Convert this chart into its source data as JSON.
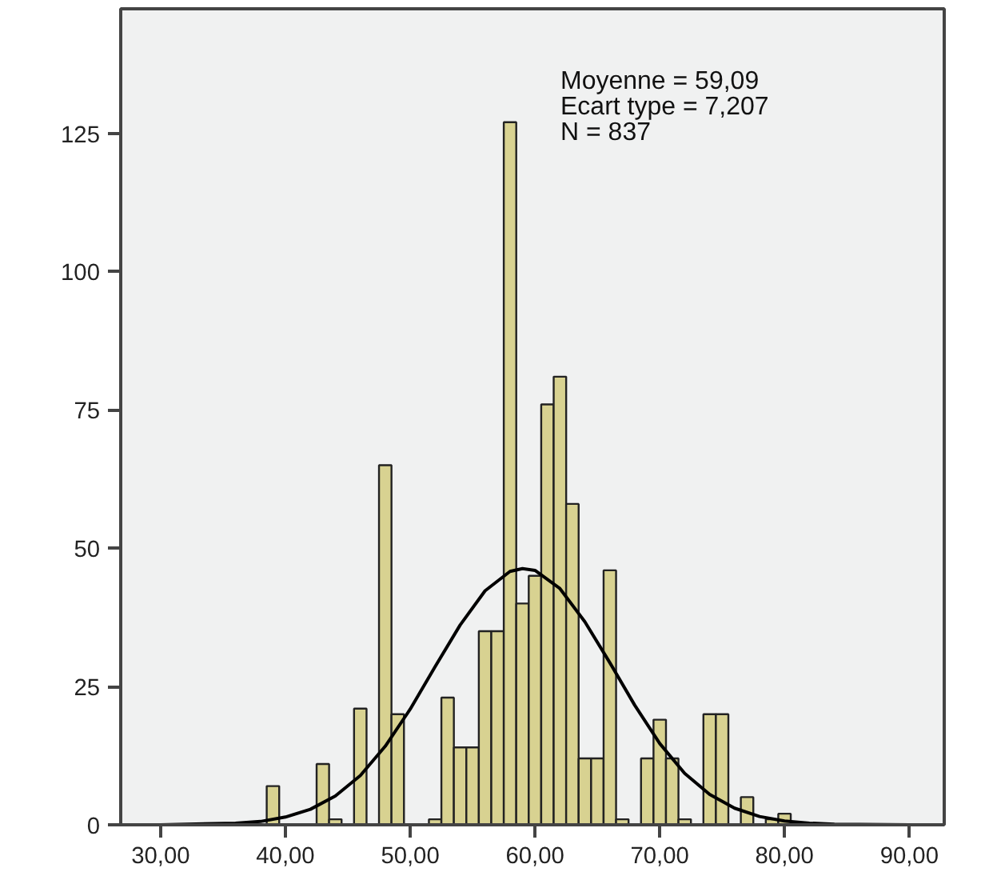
{
  "chart_data": {
    "type": "histogram",
    "bins": [
      38.5,
      39.5,
      40.5,
      41.5,
      42.5,
      43.5,
      44.5,
      45.5,
      46.5,
      47.5,
      48.5,
      49.5,
      50.5,
      51.5,
      52.5,
      53.5,
      54.5,
      55.5,
      56.5,
      57.5,
      58.5,
      59.5,
      60.5,
      61.5,
      62.5,
      63.5,
      64.5,
      65.5,
      66.5,
      67.5,
      68.5,
      69.5,
      70.5,
      71.5,
      72.5,
      73.5,
      74.5,
      75.5,
      76.5,
      77.5,
      78.5,
      79.5,
      80.5
    ],
    "values": [
      7,
      0,
      0,
      0,
      11,
      1,
      0,
      21,
      0,
      65,
      20,
      0,
      0,
      1,
      23,
      14,
      14,
      35,
      35,
      127,
      40,
      45,
      76,
      81,
      58,
      12,
      12,
      46,
      1,
      0,
      12,
      19,
      12,
      1,
      0,
      20,
      20,
      0,
      5,
      0,
      1,
      2
    ],
    "color": "#d8d291",
    "series": [
      {
        "type": "line",
        "color": "#000000",
        "x": [
          30,
          36,
          38,
          40,
          42,
          44,
          46,
          48,
          50,
          52,
          54,
          56,
          58,
          59,
          60,
          62,
          64,
          66,
          68,
          70,
          72,
          74,
          76,
          78,
          80,
          82,
          84,
          90
        ],
        "values": [
          0,
          0.3,
          0.6,
          1.4,
          2.8,
          5.2,
          8.9,
          14.2,
          20.9,
          28.6,
          36.1,
          42.3,
          45.8,
          46.3,
          46.0,
          42.7,
          36.7,
          29.3,
          21.6,
          14.7,
          9.3,
          5.5,
          3.0,
          1.5,
          0.7,
          0.3,
          0.1,
          0
        ]
      }
    ],
    "annotations": [
      "Moyenne = 59,09",
      "Ecart type = 7,207",
      "N = 837"
    ],
    "xlim": [
      26.8,
      92.8
    ],
    "ylim": [
      0,
      147.5
    ],
    "xticks": [
      {
        "value": 30,
        "label": "30,00"
      },
      {
        "value": 40,
        "label": "40,00"
      },
      {
        "value": 50,
        "label": "50,00"
      },
      {
        "value": 60,
        "label": "60,00"
      },
      {
        "value": 70,
        "label": "70,00"
      },
      {
        "value": 80,
        "label": "80,00"
      },
      {
        "value": 90,
        "label": "90,00"
      }
    ],
    "yticks": [
      0,
      25,
      50,
      75,
      100,
      125
    ],
    "grid": false
  }
}
